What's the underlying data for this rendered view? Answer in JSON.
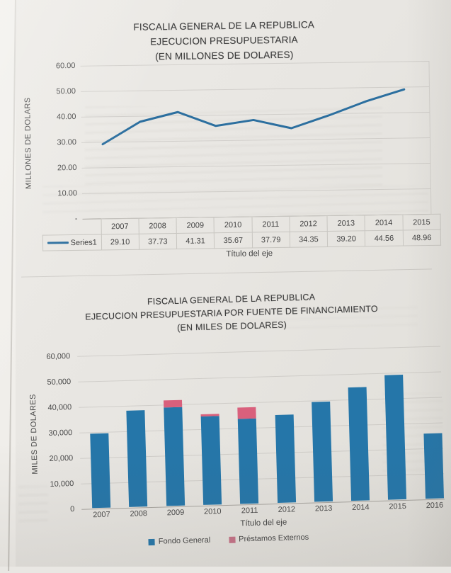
{
  "chart_data": [
    {
      "type": "line",
      "title_lines": [
        "FISCALIA GENERAL DE LA REPUBLICA",
        "EJECUCION PRESUPUESTARIA",
        "(EN MILLONES DE DOLARES)"
      ],
      "ylabel": "MILLONES DE DOLARS",
      "xlabel": "Título del eje",
      "y_ticks": [
        "60.00",
        "50.00",
        "40.00",
        "30.00",
        "20.00",
        "10.00",
        "-"
      ],
      "ylim": [
        0,
        60
      ],
      "grid": true,
      "x": [
        "2007",
        "2008",
        "2009",
        "2010",
        "2011",
        "2012",
        "2013",
        "2014",
        "2015"
      ],
      "series": [
        {
          "name": "Series1",
          "values": [
            29.1,
            37.73,
            41.31,
            35.67,
            37.79,
            34.35,
            39.2,
            44.56,
            48.96
          ]
        }
      ],
      "values_display": [
        "29.10",
        "37.73",
        "41.31",
        "35.67",
        "37.79",
        "34.35",
        "39.20",
        "44.56",
        "48.96"
      ],
      "line_color": "#2c6f9f",
      "data_table_shown": true,
      "legend_position": "table-left"
    },
    {
      "type": "bar",
      "stacked": true,
      "title_lines": [
        "FISCALIA GENERAL DE LA REPUBLICA",
        "EJECUCION PRESUPUESTARIA POR FUENTE DE FINANCIAMIENTO",
        "(EN MILES DE DOLARES)"
      ],
      "ylabel": "MILES DE DOLARES",
      "xlabel": "Título del eje",
      "y_ticks": [
        "60,000",
        "50,000",
        "40,000",
        "30,000",
        "20,000",
        "10,000",
        "0"
      ],
      "ylim": [
        0,
        60000
      ],
      "grid": true,
      "categories": [
        "2007",
        "2008",
        "2009",
        "2010",
        "2011",
        "2012",
        "2013",
        "2014",
        "2015",
        "2016"
      ],
      "series": [
        {
          "name": "Fondo General",
          "color": "#2576a9",
          "values": [
            29100,
            37730,
            38600,
            34800,
            33400,
            34350,
            39200,
            44560,
            48960,
            25500
          ]
        },
        {
          "name": "Préstamos Externos",
          "color": "#d9607c",
          "values": [
            0,
            0,
            2700,
            900,
            4400,
            0,
            0,
            0,
            0,
            0
          ]
        }
      ],
      "legend_position": "bottom",
      "legend_swatch_colors": [
        "#2576a9",
        "#c57287"
      ]
    }
  ],
  "paper": {
    "background": "#e8e6e2"
  }
}
